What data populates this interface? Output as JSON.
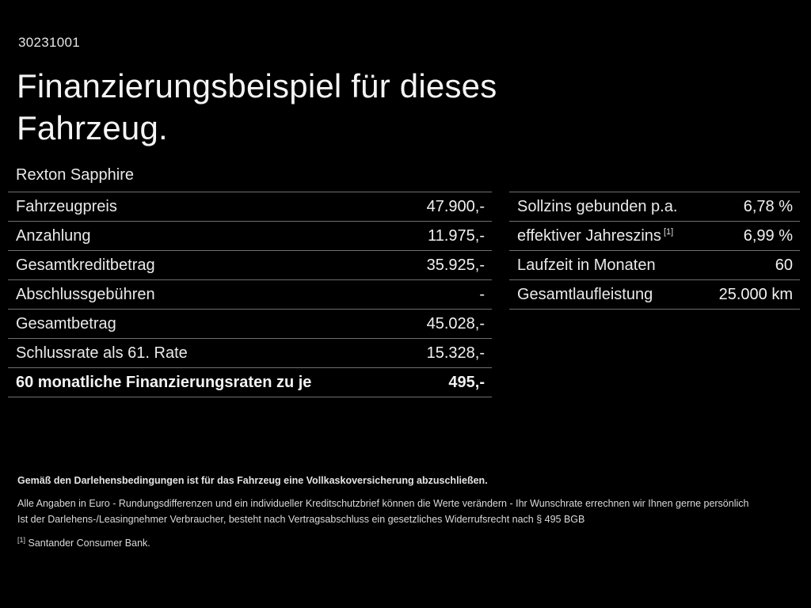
{
  "page": {
    "id_number": "30231001",
    "title_line1": "Finanzierungsbeispiel für dieses",
    "title_line2": "Fahrzeug.",
    "model_name": "Rexton Sapphire"
  },
  "finance_table": {
    "rows": [
      {
        "label": "Fahrzeugpreis",
        "value": "47.900,-"
      },
      {
        "label": "Anzahlung",
        "value": "11.975,-"
      },
      {
        "label": "Gesamtkreditbetrag",
        "value": "35.925,-"
      },
      {
        "label": "Abschlussgebühren",
        "value": "-"
      },
      {
        "label": "Gesamtbetrag",
        "value": "45.028,-"
      },
      {
        "label": "Schlussrate als 61. Rate",
        "value": "15.328,-"
      },
      {
        "label": "60 monatliche Finanzierungsraten zu je",
        "value": "495,-",
        "bold": true
      }
    ]
  },
  "conditions_table": {
    "rows": [
      {
        "label": "Sollzins gebunden p.a.",
        "value": "6,78 %"
      },
      {
        "label": "effektiver Jahreszins",
        "sup": "[1]",
        "value": "6,99 %"
      },
      {
        "label": "Laufzeit in Monaten",
        "value": "60"
      },
      {
        "label": "Gesamtlaufleistung",
        "value": "25.000 km"
      }
    ]
  },
  "footer": {
    "bold_note": "Gemäß den Darlehensbedingungen ist für das Fahrzeug eine Vollkaskoversicherung abzuschließen.",
    "note_line1": "Alle Angaben in Euro - Rundungsdifferenzen und ein individueller Kreditschutzbrief können die Werte verändern - Ihr Wunschrate errechnen wir Ihnen gerne persönlich",
    "note_line2": "Ist der Darlehens-/Leasingnehmer Verbraucher, besteht nach Vertragsabschluss ein gesetzliches Widerrufsrecht nach § 495 BGB",
    "footnote_marker": "[1]",
    "footnote_text": "Santander Consumer Bank."
  },
  "colors": {
    "background": "#000000",
    "text": "#ededed",
    "divider": "#6f6f6f"
  }
}
